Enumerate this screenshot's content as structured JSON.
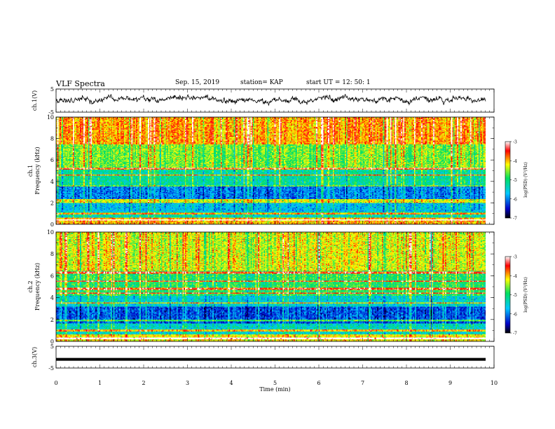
{
  "header": {
    "title": "VLF Spectra",
    "date": "Sep. 15, 2019",
    "station": "station= KAP",
    "start_ut": "start  UT =   12: 50: 1"
  },
  "chart_data": {
    "type": "heatmap",
    "xlabel": "Time  (min)",
    "xlim": [
      0,
      10
    ],
    "x_ticks": [
      "0",
      "1",
      "2",
      "3",
      "4",
      "5",
      "6",
      "7",
      "8",
      "9",
      "10"
    ],
    "panels": [
      {
        "id": "ch1-waveform",
        "type": "line",
        "ylabel": "ch.1(V)",
        "ylim": [
          -5,
          5
        ],
        "y_ticks": [
          "5",
          "-5"
        ],
        "series_color": "#000000",
        "approx_level_v": 0.5,
        "approx_amplitude_v": 2
      },
      {
        "id": "ch1-spectrogram",
        "type": "heatmap",
        "ylabel_top": "ch.1",
        "ylabel": "Frequency  (kHz)",
        "ylim": [
          0,
          10
        ],
        "y_ticks": [
          "0",
          "2",
          "4",
          "6",
          "8",
          "10"
        ],
        "colorbar": {
          "label": "log(PSD) (V²/Hz)",
          "range": [
            -7,
            -3
          ],
          "ticks": [
            "-3",
            "-4",
            "-5",
            "-6",
            "-7"
          ],
          "colors": [
            "#000000",
            "#0000c8",
            "#00c8ff",
            "#00e060",
            "#ffff00",
            "#ff0000",
            "#ffffff"
          ]
        },
        "bands_khz": [
          {
            "from": 0,
            "to": 0.6,
            "level": -4.0
          },
          {
            "from": 0.6,
            "to": 1.2,
            "level": -5.3
          },
          {
            "from": 1.2,
            "to": 2.4,
            "level": -5.7
          },
          {
            "from": 2.4,
            "to": 3.6,
            "level": -6.0
          },
          {
            "from": 3.6,
            "to": 5.2,
            "level": -5.2
          },
          {
            "from": 5.2,
            "to": 7.5,
            "level": -4.6
          },
          {
            "from": 7.5,
            "to": 10,
            "level": -3.9
          }
        ],
        "tonal_lines_khz": [
          0.4,
          1.0,
          2.1,
          2.3,
          3.6,
          4.6,
          5.2
        ]
      },
      {
        "id": "ch2-spectrogram",
        "type": "heatmap",
        "ylabel_top": "ch.2",
        "ylabel": "Frequency  (kHz)",
        "ylim": [
          0,
          10
        ],
        "y_ticks": [
          "0",
          "2",
          "4",
          "6",
          "8",
          "10"
        ],
        "colorbar": {
          "label": "log(PSD) (V²/Hz)",
          "range": [
            -7,
            -3
          ],
          "ticks": [
            "-3",
            "-4",
            "-5",
            "-6",
            "-7"
          ],
          "colors": [
            "#000000",
            "#0000c8",
            "#00c8ff",
            "#00e060",
            "#ffff00",
            "#ff0000",
            "#ffffff"
          ]
        },
        "bands_khz": [
          {
            "from": 0,
            "to": 0.6,
            "level": -4.2
          },
          {
            "from": 0.6,
            "to": 1.6,
            "level": -5.4
          },
          {
            "from": 1.6,
            "to": 3.2,
            "level": -6.2
          },
          {
            "from": 3.2,
            "to": 4.2,
            "level": -5.5
          },
          {
            "from": 4.2,
            "to": 6.5,
            "level": -4.9
          },
          {
            "from": 6.5,
            "to": 10,
            "level": -4.3
          }
        ],
        "tonal_lines_khz": [
          0.3,
          1.0,
          1.9,
          3.5,
          4.4,
          4.8,
          5.5,
          6.3
        ]
      },
      {
        "id": "ch3-waveform",
        "type": "line",
        "ylabel": "ch.3(V)",
        "ylim": [
          -5,
          5
        ],
        "y_ticks": [
          "5",
          "-5"
        ],
        "series_color": "#000000",
        "approx_level_v": -1
      }
    ]
  }
}
